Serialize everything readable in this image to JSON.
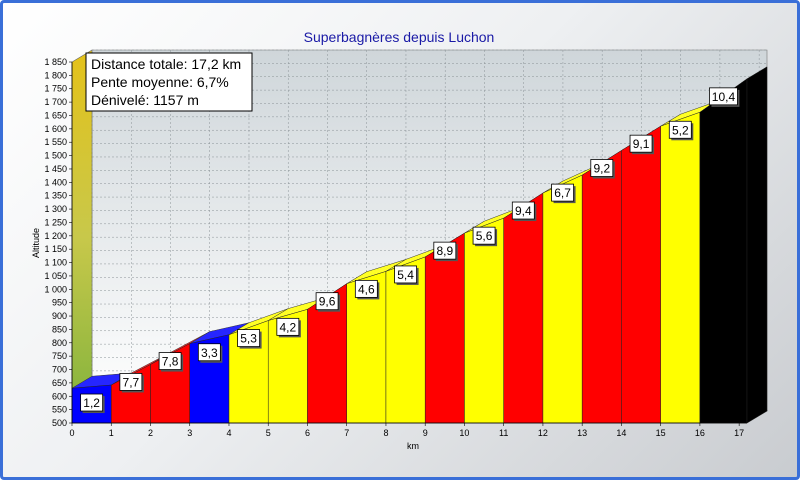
{
  "chart_data": {
    "type": "area",
    "title": "Superbagnères depuis Luchon",
    "xlabel": "km",
    "ylabel": "Altitude",
    "xlim": [
      0,
      17.2
    ],
    "ylim": [
      500,
      1850
    ],
    "x_ticks": [
      "0",
      "1",
      "2",
      "3",
      "4",
      "5",
      "6",
      "7",
      "8",
      "9",
      "10",
      "11",
      "12",
      "13",
      "14",
      "15",
      "16",
      "17"
    ],
    "y_ticks": [
      "500",
      "550",
      "600",
      "650",
      "700",
      "750",
      "800",
      "850",
      "900",
      "950",
      "1 000",
      "1 050",
      "1 100",
      "1 150",
      "1 200",
      "1 250",
      "1 300",
      "1 350",
      "1 400",
      "1 450",
      "1 500",
      "1 550",
      "1 600",
      "1 650",
      "1 700",
      "1 750",
      "1 800",
      "1 850"
    ],
    "info": [
      "Distance totale: 17,2 km",
      "Pente moyenne: 6,7%",
      "Dénivelé: 1157 m"
    ],
    "segments": [
      {
        "label": "1,2",
        "x0": 0,
        "x1": 1,
        "y0": 630,
        "y1": 642,
        "color": "#0000ff"
      },
      {
        "label": "7,7",
        "x0": 1,
        "x1": 2,
        "y0": 642,
        "y1": 719,
        "color": "#ff0000"
      },
      {
        "label": "7,8",
        "x0": 2,
        "x1": 3,
        "y0": 719,
        "y1": 797,
        "color": "#ff0000"
      },
      {
        "label": "3,3",
        "x0": 3,
        "x1": 4,
        "y0": 797,
        "y1": 830,
        "color": "#0000ff"
      },
      {
        "label": "5,3",
        "x0": 4,
        "x1": 5,
        "y0": 830,
        "y1": 883,
        "color": "#ffff00"
      },
      {
        "label": "4,2",
        "x0": 5,
        "x1": 6,
        "y0": 883,
        "y1": 925,
        "color": "#ffff00"
      },
      {
        "label": "9,6",
        "x0": 6,
        "x1": 7,
        "y0": 925,
        "y1": 1021,
        "color": "#ff0000"
      },
      {
        "label": "4,6",
        "x0": 7,
        "x1": 8,
        "y0": 1021,
        "y1": 1067,
        "color": "#ffff00"
      },
      {
        "label": "5,4",
        "x0": 8,
        "x1": 9,
        "y0": 1067,
        "y1": 1121,
        "color": "#ffff00"
      },
      {
        "label": "8,9",
        "x0": 9,
        "x1": 10,
        "y0": 1121,
        "y1": 1210,
        "color": "#ff0000"
      },
      {
        "label": "5,6",
        "x0": 10,
        "x1": 11,
        "y0": 1210,
        "y1": 1266,
        "color": "#ffff00"
      },
      {
        "label": "9,4",
        "x0": 11,
        "x1": 12,
        "y0": 1266,
        "y1": 1360,
        "color": "#ff0000"
      },
      {
        "label": "6,7",
        "x0": 12,
        "x1": 13,
        "y0": 1360,
        "y1": 1427,
        "color": "#ffff00"
      },
      {
        "label": "9,2",
        "x0": 13,
        "x1": 14,
        "y0": 1427,
        "y1": 1519,
        "color": "#ff0000"
      },
      {
        "label": "9,1",
        "x0": 14,
        "x1": 15,
        "y0": 1519,
        "y1": 1610,
        "color": "#ff0000"
      },
      {
        "label": "5,2",
        "x0": 15,
        "x1": 16,
        "y0": 1610,
        "y1": 1662,
        "color": "#ffff00"
      },
      {
        "label": "10,4",
        "x0": 16,
        "x1": 17.2,
        "y0": 1662,
        "y1": 1787,
        "color": "#000000"
      }
    ],
    "grid": true,
    "legend": "none"
  }
}
